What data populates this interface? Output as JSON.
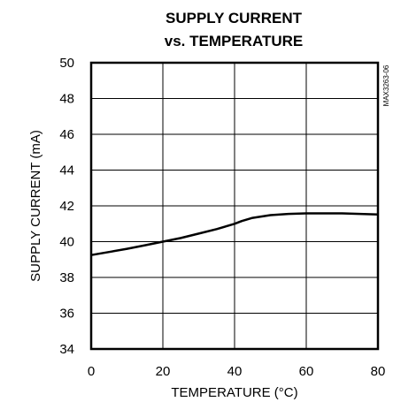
{
  "chart_data": {
    "type": "line",
    "title": [
      "SUPPLY CURRENT",
      "vs. TEMPERATURE"
    ],
    "xlabel": "TEMPERATURE (°C)",
    "ylabel": "SUPPLY CURRENT (mA)",
    "xlim": [
      0,
      80
    ],
    "ylim": [
      34,
      50
    ],
    "x_ticks": [
      0,
      20,
      40,
      60,
      80
    ],
    "y_ticks": [
      34,
      36,
      38,
      40,
      42,
      44,
      46,
      48,
      50
    ],
    "grid": true,
    "side_tag": "MAX3263-06",
    "series": [
      {
        "x": [
          0,
          5,
          10,
          15,
          20,
          25,
          30,
          35,
          40,
          42,
          45,
          50,
          55,
          60,
          65,
          70,
          75,
          80
        ],
        "y": [
          39.25,
          39.42,
          39.6,
          39.8,
          40.0,
          40.2,
          40.45,
          40.7,
          41.0,
          41.15,
          41.33,
          41.48,
          41.55,
          41.58,
          41.58,
          41.58,
          41.55,
          41.52
        ]
      }
    ]
  }
}
